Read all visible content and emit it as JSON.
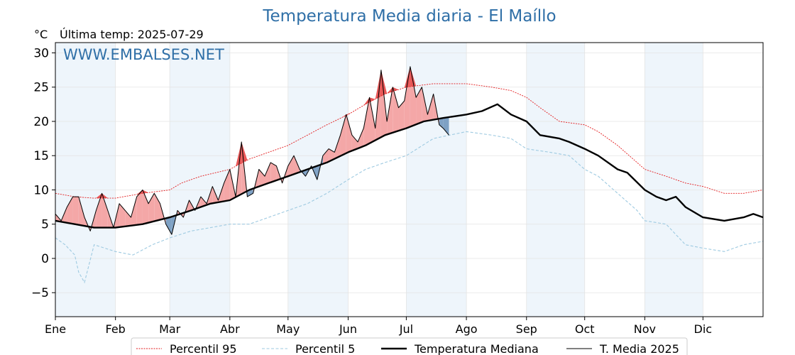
{
  "chart_data": {
    "type": "line",
    "title": "Temperatura Media diaria - El Maíllo",
    "unit_label": "°C",
    "subtitle": "Última temp: 2025-07-29",
    "watermark": "WWW.EMBALSES.NET",
    "ylim": [
      -8.5,
      31.5
    ],
    "y_ticks": [
      -5,
      0,
      5,
      10,
      15,
      20,
      25,
      30
    ],
    "y_tick_labels": [
      "−5",
      "0",
      "5",
      "10",
      "15",
      "20",
      "25",
      "30"
    ],
    "x_range_days": [
      0,
      365
    ],
    "months": [
      {
        "label": "Ene",
        "day": 0
      },
      {
        "label": "Feb",
        "day": 31
      },
      {
        "label": "Mar",
        "day": 59
      },
      {
        "label": "Abr",
        "day": 90
      },
      {
        "label": "May",
        "day": 120
      },
      {
        "label": "Jun",
        "day": 151
      },
      {
        "label": "Jul",
        "day": 181
      },
      {
        "label": "Ago",
        "day": 212
      },
      {
        "label": "Sep",
        "day": 243
      },
      {
        "label": "Oct",
        "day": 273
      },
      {
        "label": "Nov",
        "day": 304
      },
      {
        "label": "Dic",
        "day": 334
      }
    ],
    "shaded_month_indices": [
      0,
      2,
      4,
      6,
      8,
      10
    ],
    "grid": true,
    "legend_position": "bottom",
    "colors": {
      "title": "#2f6fa7",
      "watermark": "#2f6fa7",
      "p95": "#e31a1c",
      "p5": "#9ecae1",
      "median": "#000000",
      "current": "#000000",
      "above_fill": "#f4a7a7",
      "above_p95_fill": "#e85757",
      "below_fill": "#7ea1c4",
      "month_shade": "#eef5fb"
    },
    "series": [
      {
        "name": "Percentil 95",
        "key": "p95",
        "points": [
          [
            0,
            9.5
          ],
          [
            10,
            9.0
          ],
          [
            20,
            8.8
          ],
          [
            31,
            8.8
          ],
          [
            45,
            9.5
          ],
          [
            59,
            10.0
          ],
          [
            65,
            11.0
          ],
          [
            75,
            12.0
          ],
          [
            90,
            13.0
          ],
          [
            100,
            14.5
          ],
          [
            110,
            15.5
          ],
          [
            120,
            16.5
          ],
          [
            130,
            18.0
          ],
          [
            140,
            19.5
          ],
          [
            151,
            21.0
          ],
          [
            160,
            22.5
          ],
          [
            170,
            24.0
          ],
          [
            181,
            25.0
          ],
          [
            195,
            25.5
          ],
          [
            212,
            25.5
          ],
          [
            225,
            25.0
          ],
          [
            235,
            24.5
          ],
          [
            243,
            23.5
          ],
          [
            250,
            22.0
          ],
          [
            260,
            20.0
          ],
          [
            273,
            19.5
          ],
          [
            280,
            18.5
          ],
          [
            290,
            16.5
          ],
          [
            300,
            14.0
          ],
          [
            304,
            13.0
          ],
          [
            315,
            12.0
          ],
          [
            325,
            11.0
          ],
          [
            334,
            10.5
          ],
          [
            345,
            9.5
          ],
          [
            355,
            9.5
          ],
          [
            365,
            10.0
          ]
        ]
      },
      {
        "name": "Percentil 5",
        "key": "p5",
        "points": [
          [
            0,
            3.0
          ],
          [
            5,
            2.0
          ],
          [
            10,
            0.5
          ],
          [
            12,
            -2.0
          ],
          [
            15,
            -3.5
          ],
          [
            20,
            2.0
          ],
          [
            31,
            1.0
          ],
          [
            40,
            0.5
          ],
          [
            50,
            2.0
          ],
          [
            59,
            3.0
          ],
          [
            70,
            4.0
          ],
          [
            80,
            4.5
          ],
          [
            90,
            5.0
          ],
          [
            100,
            5.0
          ],
          [
            110,
            6.0
          ],
          [
            120,
            7.0
          ],
          [
            130,
            8.0
          ],
          [
            140,
            9.5
          ],
          [
            151,
            11.5
          ],
          [
            160,
            13.0
          ],
          [
            170,
            14.0
          ],
          [
            181,
            15.0
          ],
          [
            195,
            17.5
          ],
          [
            212,
            18.5
          ],
          [
            225,
            18.0
          ],
          [
            235,
            17.5
          ],
          [
            243,
            16.0
          ],
          [
            255,
            15.5
          ],
          [
            265,
            15.0
          ],
          [
            273,
            13.0
          ],
          [
            280,
            12.0
          ],
          [
            290,
            9.5
          ],
          [
            300,
            7.0
          ],
          [
            304,
            5.5
          ],
          [
            315,
            5.0
          ],
          [
            325,
            2.0
          ],
          [
            334,
            1.5
          ],
          [
            345,
            1.0
          ],
          [
            355,
            2.0
          ],
          [
            365,
            2.5
          ]
        ]
      },
      {
        "name": "Temperatura Mediana",
        "key": "median",
        "points": [
          [
            0,
            5.5
          ],
          [
            10,
            5.0
          ],
          [
            20,
            4.5
          ],
          [
            31,
            4.5
          ],
          [
            45,
            5.0
          ],
          [
            59,
            6.0
          ],
          [
            70,
            7.0
          ],
          [
            80,
            8.0
          ],
          [
            90,
            8.5
          ],
          [
            100,
            10.0
          ],
          [
            110,
            11.0
          ],
          [
            120,
            12.0
          ],
          [
            130,
            13.0
          ],
          [
            140,
            14.0
          ],
          [
            151,
            15.5
          ],
          [
            160,
            16.5
          ],
          [
            170,
            18.0
          ],
          [
            181,
            19.0
          ],
          [
            190,
            20.0
          ],
          [
            200,
            20.5
          ],
          [
            212,
            21.0
          ],
          [
            220,
            21.5
          ],
          [
            228,
            22.5
          ],
          [
            235,
            21.0
          ],
          [
            243,
            20.0
          ],
          [
            250,
            18.0
          ],
          [
            260,
            17.5
          ],
          [
            265,
            17.0
          ],
          [
            273,
            16.0
          ],
          [
            280,
            15.0
          ],
          [
            290,
            13.0
          ],
          [
            295,
            12.5
          ],
          [
            304,
            10.0
          ],
          [
            310,
            9.0
          ],
          [
            315,
            8.5
          ],
          [
            320,
            9.0
          ],
          [
            325,
            7.5
          ],
          [
            334,
            6.0
          ],
          [
            345,
            5.5
          ],
          [
            355,
            6.0
          ],
          [
            360,
            6.5
          ],
          [
            365,
            6.0
          ]
        ]
      },
      {
        "name": "T. Media 2025",
        "key": "current",
        "points": [
          [
            0,
            6.5
          ],
          [
            3,
            5.5
          ],
          [
            6,
            7.5
          ],
          [
            9,
            9.0
          ],
          [
            12,
            9.0
          ],
          [
            15,
            6.0
          ],
          [
            18,
            4.0
          ],
          [
            21,
            7.0
          ],
          [
            24,
            9.5
          ],
          [
            27,
            7.0
          ],
          [
            30,
            4.5
          ],
          [
            33,
            8.0
          ],
          [
            36,
            7.0
          ],
          [
            39,
            6.0
          ],
          [
            42,
            9.0
          ],
          [
            45,
            10.0
          ],
          [
            48,
            8.0
          ],
          [
            51,
            9.5
          ],
          [
            54,
            8.0
          ],
          [
            57,
            5.0
          ],
          [
            60,
            3.5
          ],
          [
            63,
            7.0
          ],
          [
            66,
            6.0
          ],
          [
            69,
            8.5
          ],
          [
            72,
            7.0
          ],
          [
            75,
            9.0
          ],
          [
            78,
            8.0
          ],
          [
            81,
            10.5
          ],
          [
            84,
            8.5
          ],
          [
            87,
            11.0
          ],
          [
            90,
            13.0
          ],
          [
            93,
            9.0
          ],
          [
            96,
            17.0
          ],
          [
            99,
            9.0
          ],
          [
            102,
            9.5
          ],
          [
            105,
            13.0
          ],
          [
            108,
            12.0
          ],
          [
            111,
            14.0
          ],
          [
            114,
            13.5
          ],
          [
            117,
            11.0
          ],
          [
            120,
            13.5
          ],
          [
            123,
            15.0
          ],
          [
            126,
            13.0
          ],
          [
            129,
            12.0
          ],
          [
            132,
            13.5
          ],
          [
            135,
            11.5
          ],
          [
            138,
            15.0
          ],
          [
            141,
            16.0
          ],
          [
            144,
            15.5
          ],
          [
            147,
            18.0
          ],
          [
            150,
            21.0
          ],
          [
            153,
            18.0
          ],
          [
            156,
            17.0
          ],
          [
            159,
            19.0
          ],
          [
            162,
            23.5
          ],
          [
            165,
            19.0
          ],
          [
            168,
            27.5
          ],
          [
            171,
            20.0
          ],
          [
            174,
            25.0
          ],
          [
            177,
            22.0
          ],
          [
            180,
            23.0
          ],
          [
            183,
            28.0
          ],
          [
            186,
            23.5
          ],
          [
            189,
            25.0
          ],
          [
            192,
            21.0
          ],
          [
            195,
            24.0
          ],
          [
            198,
            19.5
          ],
          [
            200,
            19.0
          ],
          [
            203,
            18.0
          ]
        ]
      }
    ]
  },
  "legend": [
    {
      "key": "p95",
      "label": "Percentil 95"
    },
    {
      "key": "p5",
      "label": "Percentil 5"
    },
    {
      "key": "median",
      "label": "Temperatura Mediana"
    },
    {
      "key": "current",
      "label": "T. Media 2025"
    }
  ]
}
